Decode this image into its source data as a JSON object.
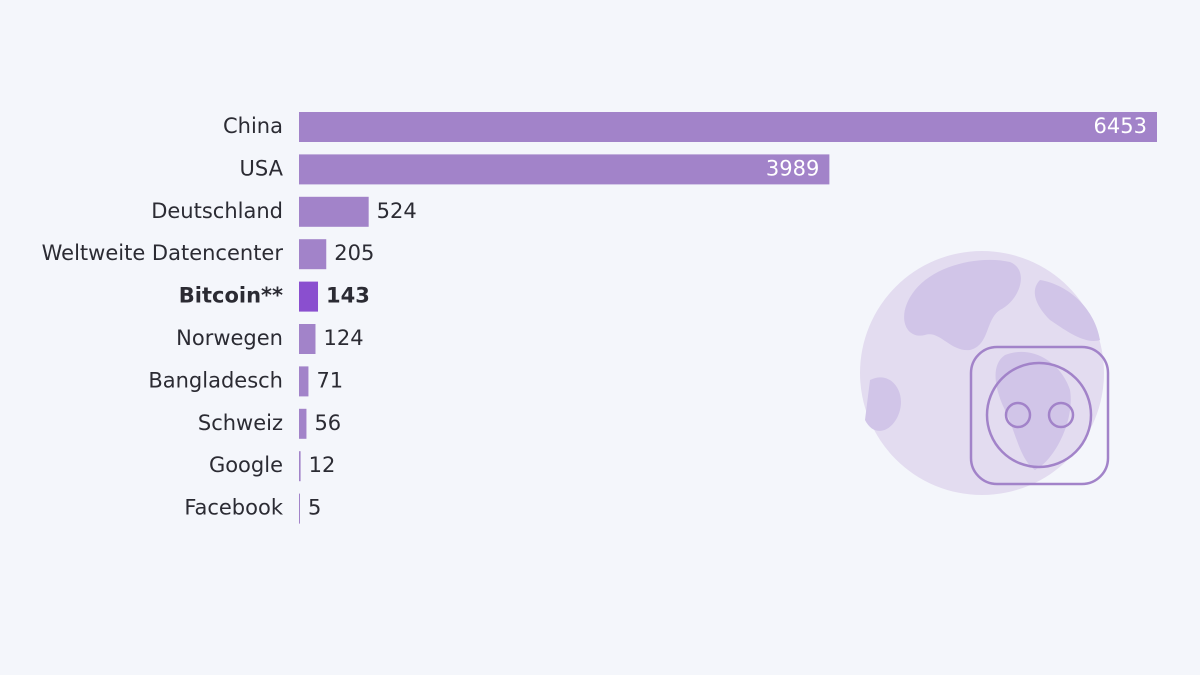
{
  "chart_data": {
    "type": "bar",
    "orientation": "horizontal",
    "categories": [
      "China",
      "USA",
      "Deutschland",
      "Weltweite Datencenter",
      "Bitcoin**",
      "Norwegen",
      "Bangladesch",
      "Schweiz",
      "Google",
      "Facebook"
    ],
    "values": [
      6453,
      3989,
      524,
      205,
      143,
      124,
      71,
      56,
      12,
      5
    ],
    "colors": [
      "#a283c9",
      "#a283c9",
      "#a283c9",
      "#a283c9",
      "#8a4fcf",
      "#a283c9",
      "#a283c9",
      "#a283c9",
      "#a283c9",
      "#a283c9"
    ],
    "bold": [
      false,
      false,
      false,
      false,
      true,
      false,
      false,
      false,
      false,
      false
    ]
  }
}
